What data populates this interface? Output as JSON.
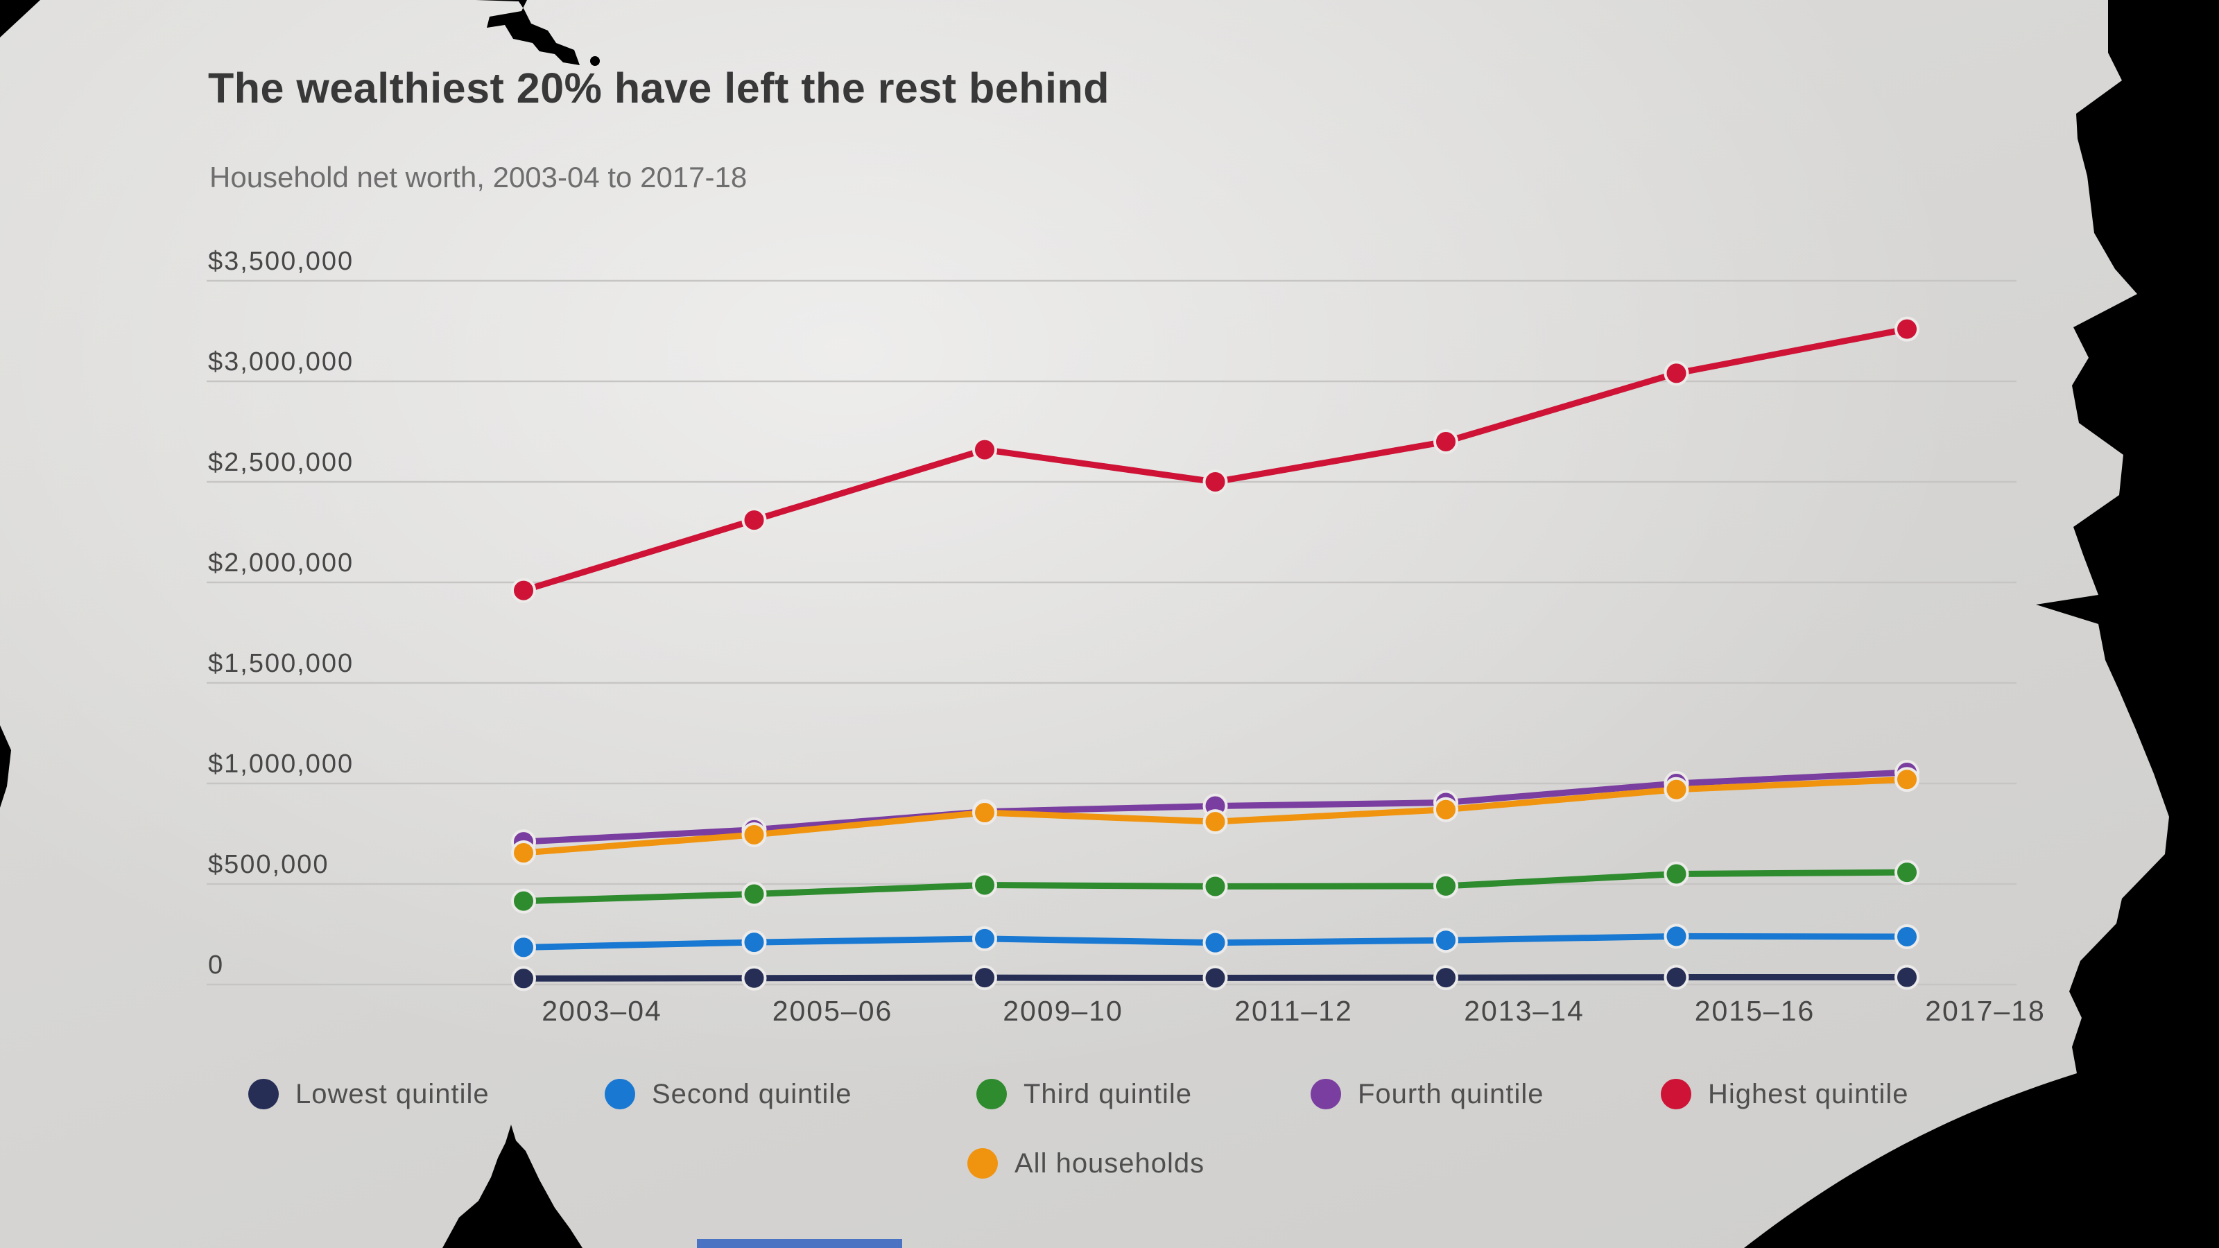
{
  "page": {
    "background_color": "#000000",
    "paper_color": "#e9e8e6",
    "accent_strip_color": "#4b73c4"
  },
  "header": {
    "title": "The wealthiest 20% have left the rest behind",
    "subtitle": "Household net worth, 2003-04 to 2017-18"
  },
  "chart_data": {
    "type": "line",
    "title": "The wealthiest 20% have left the rest behind",
    "subtitle": "Household net worth, 2003-04 to 2017-18",
    "categories": [
      "2003–04",
      "2005–06",
      "2009–10",
      "2011–12",
      "2013–14",
      "2015–16",
      "2017–18"
    ],
    "ylim": [
      0,
      3500000
    ],
    "grid": "horizontal-only",
    "legend_position": "bottom",
    "marker": "filled-circle",
    "y_ticks": [
      {
        "label": "$3,500,000",
        "value": 3500000
      },
      {
        "label": "$3,000,000",
        "value": 3000000
      },
      {
        "label": "$2,500,000",
        "value": 2500000
      },
      {
        "label": "$2,000,000",
        "value": 2000000
      },
      {
        "label": "$1,500,000",
        "value": 1500000
      },
      {
        "label": "$1,000,000",
        "value": 1000000
      },
      {
        "label": "$500,000",
        "value": 500000
      },
      {
        "label": "0",
        "value": 0
      }
    ],
    "series": [
      {
        "name": "Lowest quintile",
        "color": "#262e56",
        "values": [
          30000,
          32000,
          34000,
          33000,
          34000,
          36000,
          36000
        ]
      },
      {
        "name": "Second quintile",
        "color": "#1878d2",
        "values": [
          185000,
          210000,
          228000,
          208000,
          220000,
          240000,
          238000
        ]
      },
      {
        "name": "Third quintile",
        "color": "#2e8b2e",
        "values": [
          415000,
          450000,
          495000,
          488000,
          490000,
          550000,
          558000
        ]
      },
      {
        "name": "Fourth quintile",
        "color": "#7a3da0",
        "values": [
          710000,
          770000,
          860000,
          888000,
          905000,
          1000000,
          1055000
        ]
      },
      {
        "name": "Highest quintile",
        "color": "#ce1336",
        "values": [
          1960000,
          2310000,
          2660000,
          2500000,
          2700000,
          3040000,
          3260000
        ]
      },
      {
        "name": "All households",
        "color": "#f0930f",
        "values": [
          655000,
          745000,
          855000,
          810000,
          870000,
          970000,
          1020000
        ]
      }
    ]
  }
}
